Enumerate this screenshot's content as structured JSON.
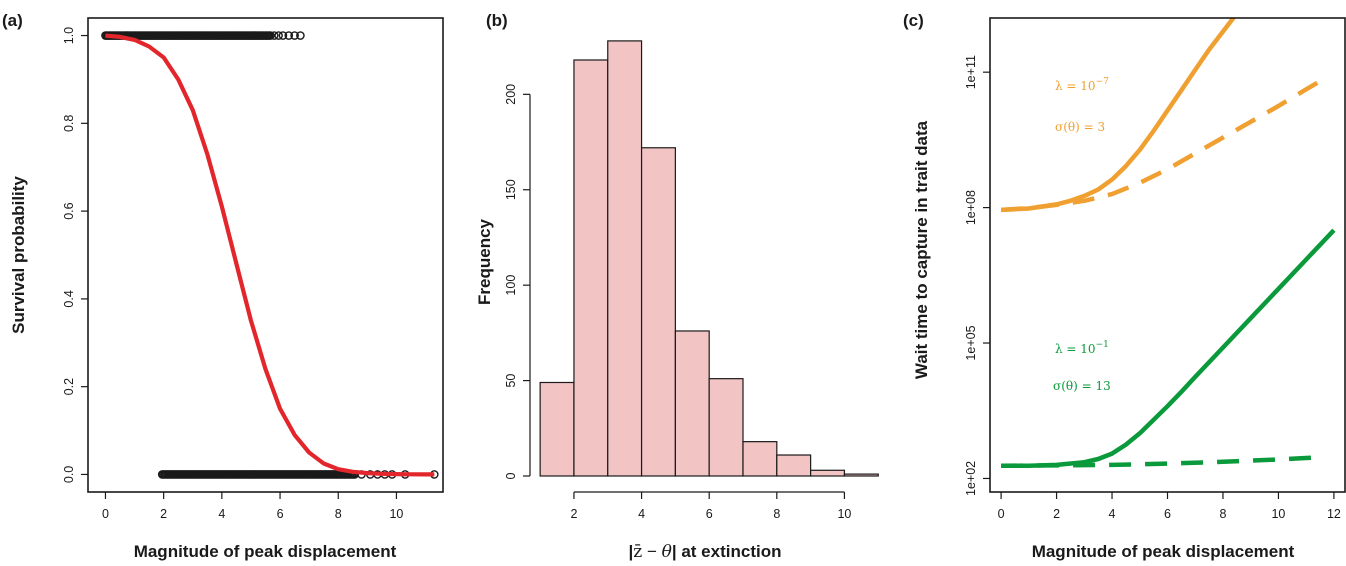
{
  "chart_data": [
    {
      "panel_label": "(a)",
      "type": "scatter",
      "title": "",
      "xlabel": "Magnitude of peak displacement",
      "ylabel": "Survival probability",
      "xlim": [
        -0.6,
        11.6
      ],
      "ylim": [
        -0.04,
        1.04
      ],
      "x_ticks": [
        0,
        2,
        4,
        6,
        8,
        10
      ],
      "x_tick_labels": [
        "0",
        "2",
        "4",
        "6",
        "8",
        "10"
      ],
      "y_ticks": [
        0,
        0.2,
        0.4,
        0.6,
        0.8,
        1.0
      ],
      "y_tick_labels": [
        "0.0",
        "0.2",
        "0.4",
        "0.6",
        "0.8",
        "1.0"
      ],
      "point_color": "#1a1a1a",
      "curve_color": "#e3262b",
      "points_survived": {
        "y": 1,
        "x_dense_range": [
          0,
          5.7
        ],
        "x_sparse": [
          5.8,
          5.95,
          6.1,
          6.3,
          6.5,
          6.7
        ]
      },
      "points_extinct": {
        "y": 0,
        "x_dense_range": [
          1.95,
          8.6
        ],
        "x_sparse": [
          8.8,
          9.1,
          9.35,
          9.6,
          9.85,
          10.3,
          11.3
        ]
      },
      "fit_curve": {
        "x": [
          0,
          0.5,
          1,
          1.5,
          2,
          2.5,
          3,
          3.5,
          4,
          4.5,
          5,
          5.5,
          6,
          6.5,
          7,
          7.5,
          8,
          8.5,
          9,
          9.5,
          10,
          10.5,
          11,
          11.3
        ],
        "y": [
          1.0,
          0.997,
          0.99,
          0.975,
          0.95,
          0.9,
          0.83,
          0.73,
          0.61,
          0.48,
          0.35,
          0.24,
          0.15,
          0.09,
          0.05,
          0.025,
          0.012,
          0.006,
          0.003,
          0.0015,
          0.0008,
          0.0004,
          0.0002,
          0.0001
        ]
      }
    },
    {
      "panel_label": "(b)",
      "type": "bar",
      "title": "",
      "xlabel_parts": [
        "|",
        "z̄",
        " − ",
        "θ",
        "|",
        " at extinction"
      ],
      "ylabel": "Frequency",
      "xlim": [
        0.7,
        11.2
      ],
      "ylim": [
        0,
        240
      ],
      "x_ticks": [
        2,
        4,
        6,
        8,
        10
      ],
      "x_tick_labels": [
        "2",
        "4",
        "6",
        "8",
        "10"
      ],
      "y_ticks": [
        0,
        50,
        100,
        150,
        200
      ],
      "y_tick_labels": [
        "0",
        "50",
        "100",
        "150",
        "200"
      ],
      "bar_fill": "#f2c4c4",
      "bar_edge": "#1a1a1a",
      "bins": [
        [
          1,
          2
        ],
        [
          2,
          3
        ],
        [
          3,
          4
        ],
        [
          4,
          5
        ],
        [
          5,
          6
        ],
        [
          6,
          7
        ],
        [
          7,
          8
        ],
        [
          8,
          9
        ],
        [
          9,
          10
        ],
        [
          10,
          11
        ]
      ],
      "values": [
        49,
        218,
        228,
        172,
        76,
        51,
        18,
        11,
        3,
        1
      ]
    },
    {
      "panel_label": "(c)",
      "type": "line",
      "title": "",
      "xlabel": "Magnitude of peak displacement",
      "ylabel": "Wait time to capture in trait data",
      "y_scale": "log",
      "xlim": [
        -0.4,
        12.4
      ],
      "ylim_log10": [
        1.7,
        12.2
      ],
      "x_ticks": [
        0,
        2,
        4,
        6,
        8,
        10,
        12
      ],
      "x_tick_labels": [
        "0",
        "2",
        "4",
        "6",
        "8",
        "10",
        "12"
      ],
      "y_ticks_log10": [
        2,
        5,
        8,
        11
      ],
      "y_tick_labels": [
        "1e+02",
        "1e+05",
        "1e+08",
        "1e+11"
      ],
      "annotations": [
        {
          "group": "orange",
          "lambda_text": "λ = 10",
          "lambda_exp": "−7",
          "sigma_text": "σ(θ) = 3"
        },
        {
          "group": "green",
          "lambda_text": "λ = 10",
          "lambda_exp": "−1",
          "sigma_text": "σ(θ) = 13"
        }
      ],
      "series": [
        {
          "group": "orange",
          "color": "#f0a030",
          "dash": "solid",
          "x": [
            0,
            1,
            2,
            2.5,
            3,
            3.5,
            4,
            4.5,
            5,
            5.5,
            6,
            6.5,
            7,
            7.5,
            8,
            8.5,
            8.9
          ],
          "log10_y": [
            7.95,
            7.98,
            8.07,
            8.15,
            8.26,
            8.4,
            8.62,
            8.92,
            9.28,
            9.7,
            10.15,
            10.6,
            11.05,
            11.5,
            11.9,
            12.3,
            12.6
          ]
        },
        {
          "group": "orange",
          "color": "#f0a030",
          "dash": "dashed",
          "x": [
            0,
            1,
            2,
            3,
            4,
            5,
            6,
            7,
            8,
            9,
            10,
            11,
            11.5
          ],
          "log10_y": [
            7.95,
            7.99,
            8.06,
            8.15,
            8.3,
            8.55,
            8.85,
            9.2,
            9.55,
            9.9,
            10.25,
            10.62,
            10.8
          ]
        },
        {
          "group": "green",
          "color": "#0a9a3c",
          "dash": "solid",
          "x": [
            0,
            1,
            2,
            3,
            3.5,
            4,
            4.5,
            5,
            5.5,
            6,
            6.5,
            7,
            8,
            9,
            10,
            11,
            12
          ],
          "log10_y": [
            2.28,
            2.28,
            2.3,
            2.36,
            2.43,
            2.55,
            2.75,
            3.0,
            3.3,
            3.6,
            3.92,
            4.25,
            4.9,
            5.55,
            6.2,
            6.85,
            7.5
          ]
        },
        {
          "group": "green",
          "color": "#0a9a3c",
          "dash": "dashed",
          "x": [
            0,
            2,
            4,
            6,
            8,
            10,
            11.5
          ],
          "log10_y": [
            2.28,
            2.29,
            2.3,
            2.33,
            2.37,
            2.42,
            2.47
          ]
        }
      ]
    }
  ]
}
